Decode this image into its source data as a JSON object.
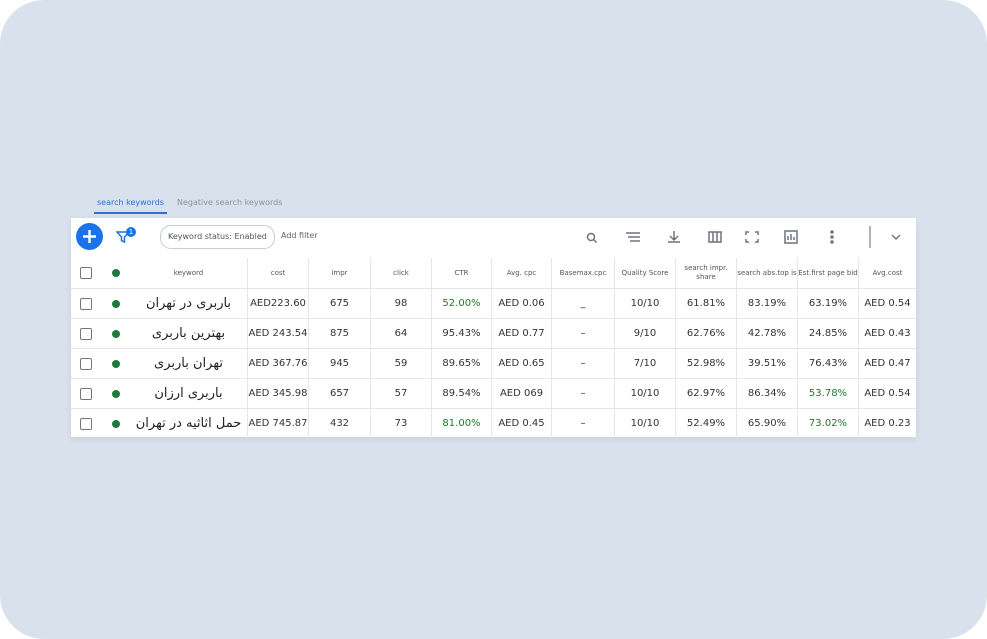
{
  "tabs": [
    "search keywords",
    "Negative search keywords"
  ],
  "toolbar": {
    "filter_badge": "1",
    "chip": "Keyword status: Enabled",
    "add_filter": "Add filter"
  },
  "table": {
    "headers": [
      "keyword",
      "cost",
      "impr",
      "click",
      "CTR",
      "Avg. cpc",
      "Basemax.cpc",
      "Quality Score",
      "search impr. share",
      "search abs.top is",
      "Est.first page bid",
      "Avg.cost"
    ],
    "rows": [
      [
        "باربری در تهران",
        "AED223.60",
        "675",
        "98",
        "52.00%",
        "AED 0.06",
        "_",
        "10/10",
        "61.81%",
        "83.19%",
        "63.19%",
        "AED 0.54"
      ],
      [
        "بهترین باربری",
        "AED 243.54",
        "875",
        "64",
        "95.43%",
        "AED 0.77",
        "–",
        "9/10",
        "62.76%",
        "42.78%",
        "24.85%",
        "AED 0.43"
      ],
      [
        "تهران باربری",
        "AED 367.76",
        "945",
        "59",
        "89.65%",
        "AED 0.65",
        "–",
        "7/10",
        "52.98%",
        "39.51%",
        "76.43%",
        "AED 0.47"
      ],
      [
        "باربری ارزان",
        "AED 345.98",
        "657",
        "57",
        "89.54%",
        "AED 069",
        "–",
        "10/10",
        "62.97%",
        "86.34%",
        "53.78%",
        "AED 0.54"
      ],
      [
        "حمل اثاثیه در تهران",
        "AED 745.87",
        "432",
        "73",
        "81.00%",
        "AED 0.45",
        "–",
        "10/10",
        "52.49%",
        "65.90%",
        "73.02%",
        "AED 0.23"
      ]
    ]
  }
}
